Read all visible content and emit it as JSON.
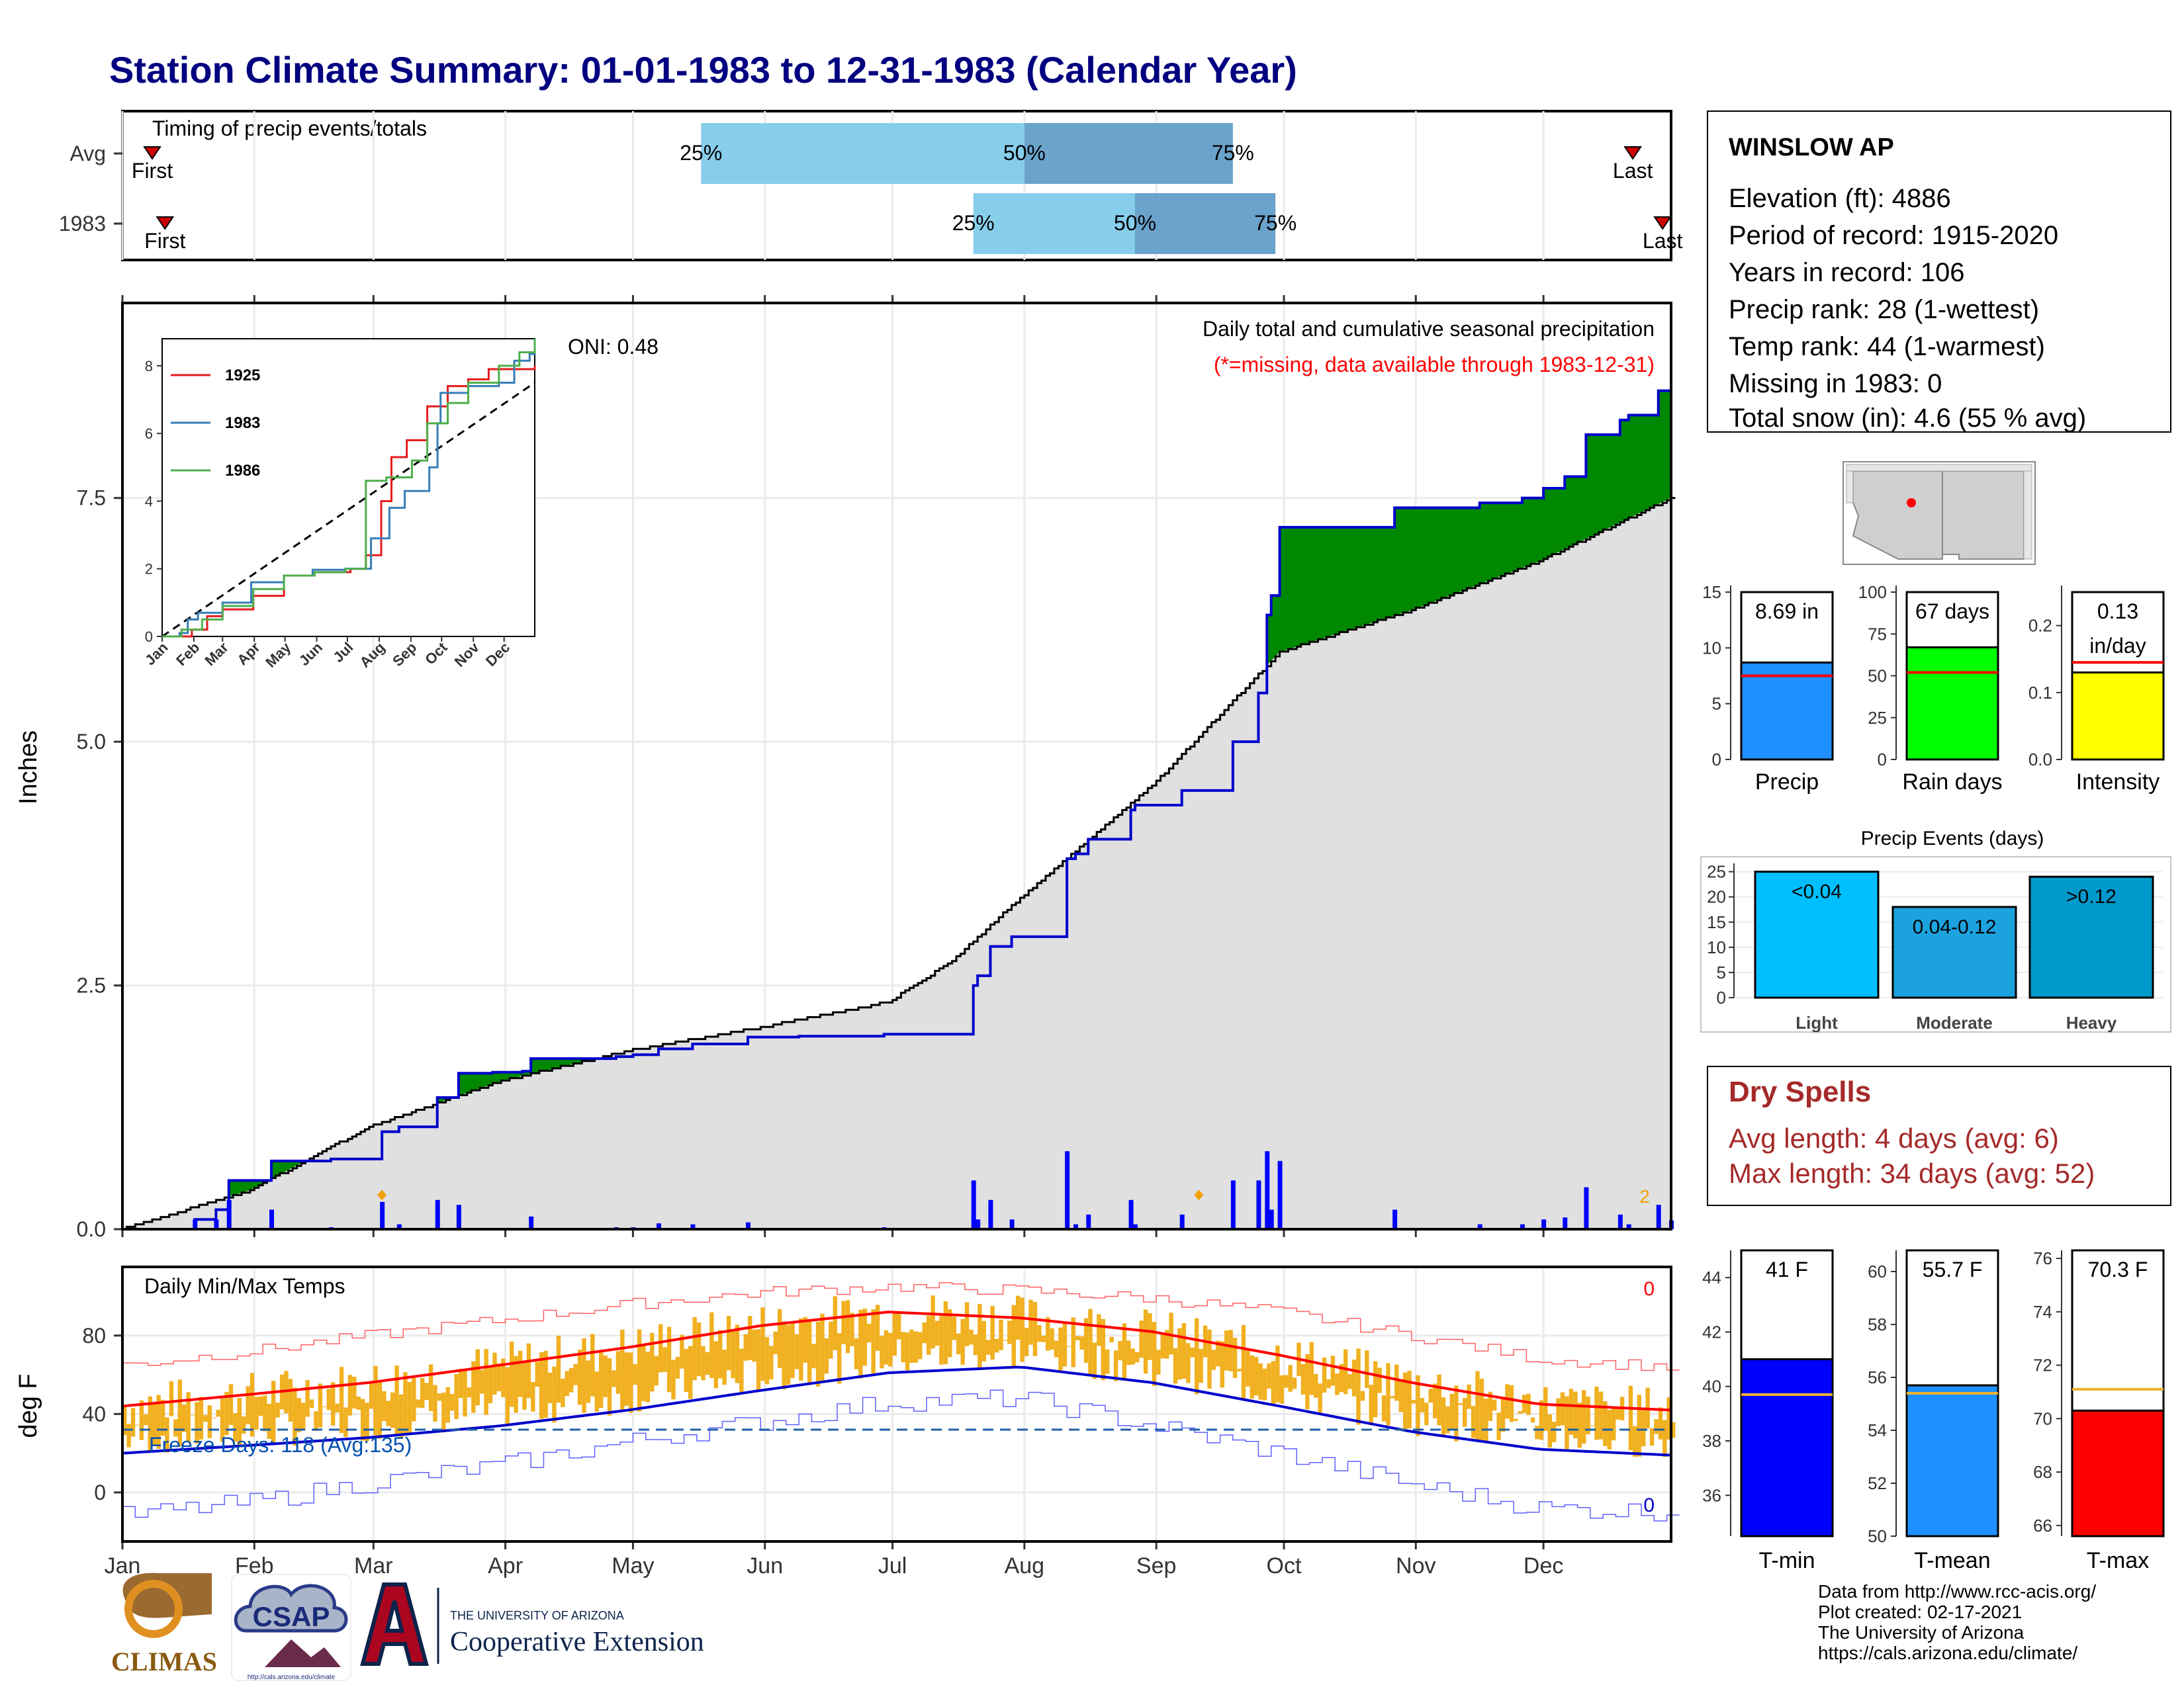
{
  "page": {
    "title": "Station Climate Summary: 01-01-1983 to 12-31-1983 (Calendar Year)"
  },
  "colors": {
    "title": "#000080",
    "above_avg": "#008800",
    "below_avg": "#8B5A00",
    "climo_fill": "#e0e0e0",
    "cumulative_line": "#0000cc",
    "daily_bar": "#0000ff",
    "snow": "#5ac8fa",
    "timing_light": "#87ceeb",
    "timing_dark": "#6aa3cc",
    "temp_bar": "#f0b020",
    "tmax_line": "#ff0000",
    "tmin_line": "#0000cc",
    "dry_spell_text": "#a52a2a"
  },
  "timing": {
    "title": "Timing of precip events/totals",
    "rows": [
      {
        "label": "Avg",
        "first_doy": 8,
        "last_doy": 356,
        "p25_doy": 137,
        "p50_doy": 213,
        "p75_doy": 262,
        "first_label": "First",
        "last_label": "Last",
        "p25_label": "25%",
        "p50_label": "50%",
        "p75_label": "75%"
      },
      {
        "label": "1983",
        "first_doy": 11,
        "last_doy": 363,
        "p25_doy": 201,
        "p50_doy": 239,
        "p75_doy": 272,
        "first_label": "First",
        "last_label": "Last",
        "p25_label": "25%",
        "p50_label": "50%",
        "p75_label": "75%"
      }
    ]
  },
  "precip_panel": {
    "ylabel": "Inches",
    "yticks": [
      "0.0",
      "2.5",
      "5.0",
      "7.5"
    ],
    "ylim": [
      0,
      9.5
    ],
    "title": "Daily total and cumulative seasonal precipitation",
    "missing_note": "(*=missing, data available through 1983-12-31)",
    "oni": "ONI: 0.48",
    "snow_count_label": "2"
  },
  "inset": {
    "yticks": [
      "0",
      "2",
      "4",
      "6",
      "8"
    ],
    "xticks": [
      "Jan",
      "Feb",
      "Mar",
      "Apr",
      "May",
      "Jun",
      "Jul",
      "Aug",
      "Sep",
      "Oct",
      "Nov",
      "Dec"
    ],
    "legend": [
      {
        "name": "1925",
        "color": "#e41a1c"
      },
      {
        "name": "1983",
        "color": "#377eb8"
      },
      {
        "name": "1986",
        "color": "#4daf4a"
      }
    ]
  },
  "temp_panel": {
    "ylabel": "deg F",
    "title": "Daily Min/Max Temps",
    "yticks": [
      "0",
      "40",
      "80"
    ],
    "ylim": [
      -25,
      115
    ],
    "freeze_label": "Freeze Days: 118 (Avg:135)",
    "freeze_level": 32,
    "count_top": "0",
    "count_bottom": "0",
    "months": [
      "Jan",
      "Feb",
      "Mar",
      "Apr",
      "May",
      "Jun",
      "Jul",
      "Aug",
      "Sep",
      "Oct",
      "Nov",
      "Dec"
    ]
  },
  "station": {
    "name": "WINSLOW AP",
    "lines": [
      "Elevation (ft): 4886",
      "Period of record: 1915-2020",
      "Years in record: 106",
      "Precip rank: 28 (1-wettest)",
      "Temp rank: 44 (1-warmest)",
      "Missing in 1983: 0",
      "Total snow (in): 4.6 (55 % avg)"
    ]
  },
  "summary_bars": [
    {
      "value_label": "8.69 in",
      "value": 8.69,
      "avg": 7.5,
      "ymax": 15,
      "ticks": [
        "0",
        "5",
        "10",
        "15"
      ],
      "tick_vals": [
        0,
        5,
        10,
        15
      ],
      "name": "Precip",
      "color": "#1e90ff"
    },
    {
      "value_label": "67 days",
      "value": 67,
      "avg": 52,
      "ymax": 100,
      "ticks": [
        "0",
        "25",
        "50",
        "75",
        "100"
      ],
      "tick_vals": [
        0,
        25,
        50,
        75,
        100
      ],
      "name": "Rain days",
      "color": "#00ff00"
    },
    {
      "value_label": "0.13\nin/day",
      "value": 0.13,
      "avg": 0.145,
      "ymax": 0.25,
      "ticks": [
        "0.0",
        "0.1",
        "0.2"
      ],
      "tick_vals": [
        0,
        0.1,
        0.2
      ],
      "name": "Intensity",
      "color": "#ffff00"
    }
  ],
  "events": {
    "title": "Precip Events (days)",
    "yticks": [
      "0",
      "5",
      "10",
      "15",
      "20",
      "25"
    ],
    "ymax": 26,
    "bars": [
      {
        "name": "Light",
        "label": "<0.04",
        "value": 25,
        "color": "#00bfff"
      },
      {
        "name": "Moderate",
        "label": "0.04-0.12",
        "value": 18,
        "color": "#1ca3df"
      },
      {
        "name": "Heavy",
        "label": ">0.12",
        "value": 24,
        "color": "#0099cc"
      }
    ]
  },
  "dry_spells": {
    "title": "Dry Spells",
    "avg_line": "Avg length: 4 days (avg: 6)",
    "max_line": "Max length: 34 days (avg: 52)"
  },
  "temp_bars": [
    {
      "value_label": "41 F",
      "value": 41,
      "avg": 39.7,
      "ymin": 34.5,
      "ymax": 45,
      "ticks": [
        "36",
        "38",
        "40",
        "42",
        "44"
      ],
      "tick_vals": [
        36,
        38,
        40,
        42,
        44
      ],
      "name": "T-min",
      "color": "#0000ff"
    },
    {
      "value_label": "55.7 F",
      "value": 55.7,
      "avg": 55.4,
      "ymin": 50,
      "ymax": 60.8,
      "ticks": [
        "50",
        "52",
        "54",
        "56",
        "58",
        "60"
      ],
      "tick_vals": [
        50,
        52,
        54,
        56,
        58,
        60
      ],
      "name": "T-mean",
      "color": "#1e90ff"
    },
    {
      "value_label": "70.3 F",
      "value": 70.3,
      "avg": 71.1,
      "ymin": 65.6,
      "ymax": 76.3,
      "ticks": [
        "66",
        "68",
        "70",
        "72",
        "74",
        "76"
      ],
      "tick_vals": [
        66,
        68,
        70,
        72,
        74,
        76
      ],
      "name": "T-max",
      "color": "#ff0000"
    }
  ],
  "logos": {
    "climas": "CLIMAS",
    "csap": "CSAP",
    "csap_url": "http://cals.arizona.edu/climate",
    "ua_small": "THE UNIVERSITY OF ARIZONA",
    "ua_ext": "Cooperative Extension"
  },
  "footer": [
    "Data from http://www.rcc-acis.org/",
    "Plot created: 02-17-2021",
    "The University of Arizona",
    "https://cals.arizona.edu/climate/"
  ],
  "chart_data": [
    {
      "type": "line",
      "title": "Daily total and cumulative seasonal precipitation",
      "ylabel": "Inches",
      "ylim": [
        0,
        9.5
      ],
      "x_unit": "day of year",
      "series": [
        {
          "name": "observed_cumulative",
          "x": [
            1,
            18,
            23,
            26,
            36,
            50,
            62,
            66,
            75,
            80,
            88,
            95,
            97,
            117,
            121,
            127,
            135,
            148,
            160,
            180,
            200,
            201,
            202,
            205,
            210,
            215,
            223,
            225,
            228,
            235,
            238,
            239,
            250,
            262,
            268,
            270,
            271,
            273,
            300,
            320,
            330,
            335,
            340,
            345,
            353,
            355,
            360,
            362,
            365
          ],
          "y": [
            0.0,
            0.1,
            0.2,
            0.5,
            0.7,
            0.72,
            1.0,
            1.05,
            1.35,
            1.6,
            1.61,
            1.62,
            1.75,
            1.77,
            1.79,
            1.85,
            1.9,
            1.97,
            1.98,
            2.0,
            2.0,
            2.5,
            2.6,
            2.9,
            3.0,
            3.0,
            3.8,
            3.85,
            4.0,
            4.0,
            4.3,
            4.35,
            4.5,
            5.0,
            5.5,
            6.3,
            6.5,
            7.2,
            7.4,
            7.45,
            7.5,
            7.6,
            7.72,
            8.15,
            8.3,
            8.35,
            8.35,
            8.6,
            8.69
          ]
        },
        {
          "name": "climatology_cumulative",
          "x": [
            1,
            31,
            59,
            90,
            120,
            151,
            181,
            196,
            212,
            243,
            273,
            304,
            334,
            365
          ],
          "y": [
            0.0,
            0.4,
            1.05,
            1.52,
            1.83,
            2.07,
            2.33,
            2.75,
            3.4,
            4.55,
            5.92,
            6.35,
            6.85,
            7.5
          ]
        }
      ]
    },
    {
      "type": "line",
      "title": "",
      "xlabel": "",
      "ylabel": "",
      "ylim": [
        0,
        8.8
      ],
      "series": [
        {
          "name": "1925",
          "x": [
            1,
            30,
            45,
            60,
            90,
            120,
            150,
            185,
            200,
            215,
            225,
            240,
            260,
            280,
            300,
            320,
            345,
            365
          ],
          "y": [
            0,
            0.2,
            0.6,
            0.8,
            1.2,
            1.8,
            1.9,
            2.0,
            2.4,
            4.0,
            5.3,
            5.8,
            6.8,
            7.4,
            7.6,
            7.9,
            7.9,
            8.0
          ]
        },
        {
          "name": "1983",
          "x": [
            1,
            18,
            26,
            36,
            60,
            88,
            120,
            148,
            180,
            200,
            205,
            223,
            238,
            262,
            270,
            273,
            300,
            330,
            345,
            360,
            365
          ],
          "y": [
            0,
            0.1,
            0.5,
            0.7,
            1.0,
            1.6,
            1.8,
            1.97,
            2.0,
            2.0,
            2.9,
            3.8,
            4.3,
            5.0,
            6.3,
            7.2,
            7.4,
            7.5,
            8.15,
            8.35,
            8.69
          ]
        },
        {
          "name": "1986",
          "x": [
            1,
            20,
            40,
            60,
            90,
            120,
            150,
            180,
            200,
            220,
            245,
            260,
            280,
            300,
            330,
            350,
            365
          ],
          "y": [
            0,
            0.2,
            0.5,
            0.9,
            1.4,
            1.8,
            1.9,
            2.0,
            4.6,
            4.7,
            5.2,
            6.3,
            6.9,
            7.5,
            8.0,
            8.4,
            8.8
          ]
        },
        {
          "name": "average",
          "x": [
            1,
            365
          ],
          "y": [
            0,
            7.5
          ]
        }
      ]
    },
    {
      "type": "area",
      "title": "Daily Min/Max Temps",
      "ylabel": "deg F",
      "ylim": [
        -25,
        115
      ],
      "series": [
        {
          "name": "avg_tmax",
          "x": [
            1,
            31,
            59,
            90,
            120,
            151,
            181,
            212,
            243,
            273,
            304,
            334,
            365
          ],
          "y": [
            44,
            50,
            56,
            65,
            74,
            85,
            92,
            89,
            82,
            70,
            56,
            45,
            42
          ]
        },
        {
          "name": "avg_tmin",
          "x": [
            1,
            31,
            59,
            90,
            120,
            151,
            181,
            212,
            243,
            273,
            304,
            334,
            365
          ],
          "y": [
            20,
            24,
            28,
            34,
            42,
            52,
            61,
            64,
            56,
            44,
            31,
            22,
            19
          ]
        },
        {
          "name": "record_high",
          "x": [
            1,
            31,
            59,
            90,
            120,
            151,
            181,
            212,
            243,
            273,
            304,
            334,
            365
          ],
          "y": [
            65,
            72,
            80,
            88,
            96,
            102,
            105,
            103,
            99,
            92,
            80,
            68,
            64
          ]
        },
        {
          "name": "record_low",
          "x": [
            1,
            31,
            59,
            90,
            120,
            151,
            181,
            212,
            243,
            273,
            304,
            334,
            365
          ],
          "y": [
            -12,
            -5,
            5,
            14,
            26,
            36,
            46,
            48,
            34,
            20,
            4,
            -8,
            -10
          ]
        }
      ]
    }
  ]
}
